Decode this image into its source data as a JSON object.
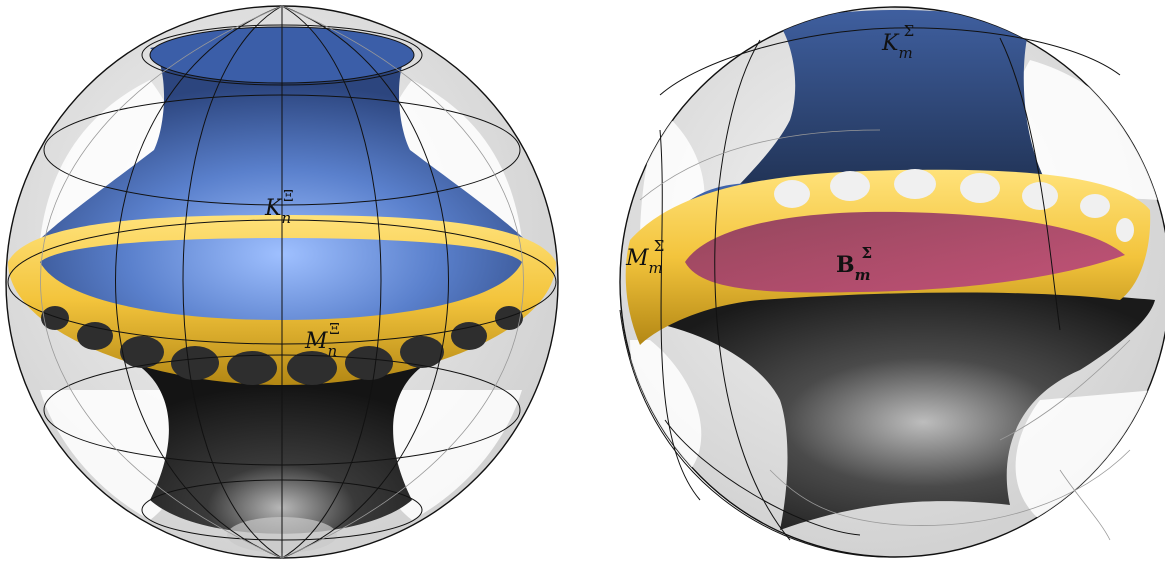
{
  "figures": [
    {
      "id": "left-sphere",
      "labels": {
        "top_surface": {
          "main": "K",
          "sub": "n",
          "sup": "Ξ"
        },
        "ring": {
          "main": "M",
          "sub": "n",
          "sup": "Ξ"
        }
      }
    },
    {
      "id": "right-sphere",
      "labels": {
        "top_surface": {
          "main": "K",
          "sub": "m",
          "sup": "Σ"
        },
        "ring": {
          "main": "M",
          "sub": "m",
          "sup": "Σ"
        },
        "disk": {
          "main": "B",
          "sub": "m",
          "sup": "Σ"
        }
      }
    }
  ],
  "colors": {
    "blue_surface": "#4a6fb8",
    "gold_ring": "#f2c744",
    "dark_surface": "#2a2a2a",
    "magenta_disk": "#b03f72",
    "sphere_glass": "#e6e6e6"
  }
}
